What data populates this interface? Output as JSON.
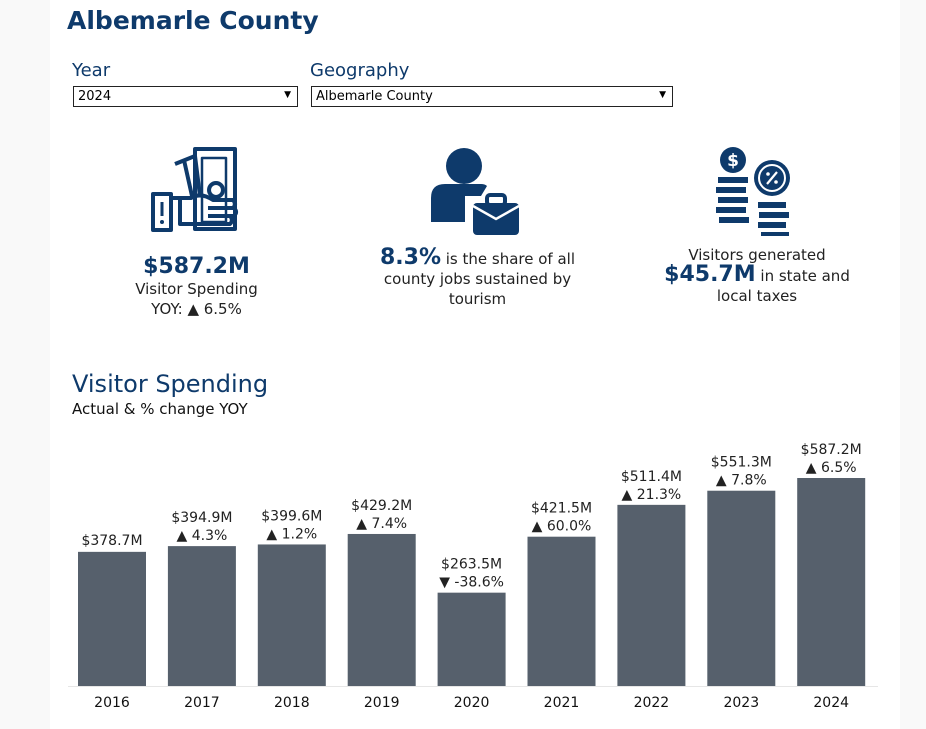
{
  "header": {
    "title": "Albemarle County"
  },
  "filters": {
    "year": {
      "label": "Year",
      "value": "2024"
    },
    "geography": {
      "label": "Geography",
      "value": "Albemarle County"
    }
  },
  "kpis": {
    "spending": {
      "value": "$587.2M",
      "label": "Visitor Spending",
      "yoy": "YOY: ▲ 6.5%",
      "icon": "money-hand-icon"
    },
    "jobs": {
      "value": "8.3%",
      "text_1": "is the share of all",
      "text_2": "county jobs sustained by",
      "text_3": "tourism",
      "icon": "worker-briefcase-icon"
    },
    "taxes": {
      "text_1": "Visitors generated",
      "value": "$45.7M",
      "text_2": "in state and",
      "text_3": "local taxes",
      "icon": "coins-tax-icon"
    }
  },
  "colors": {
    "brand": "#0e3a6b",
    "bar": "#56606c"
  },
  "chart_data": {
    "type": "bar",
    "title": "Visitor Spending",
    "subtitle": "Actual & % change YOY",
    "xlabel": "",
    "ylabel": "",
    "categories": [
      "2016",
      "2017",
      "2018",
      "2019",
      "2020",
      "2021",
      "2022",
      "2023",
      "2024"
    ],
    "values": [
      378.7,
      394.9,
      399.6,
      429.2,
      263.5,
      421.5,
      511.4,
      551.3,
      587.2
    ],
    "value_labels": [
      "$378.7M",
      "$394.9M",
      "$399.6M",
      "$429.2M",
      "$263.5M",
      "$421.5M",
      "$511.4M",
      "$551.3M",
      "$587.2M"
    ],
    "change_labels": [
      "",
      "▲ 4.3%",
      "▲ 1.2%",
      "▲ 7.4%",
      "▼ -38.6%",
      "▲ 60.0%",
      "▲ 21.3%",
      "▲ 7.8%",
      "▲ 6.5%"
    ],
    "ylim": [
      0,
      600
    ],
    "grid": false,
    "legend": "none"
  }
}
